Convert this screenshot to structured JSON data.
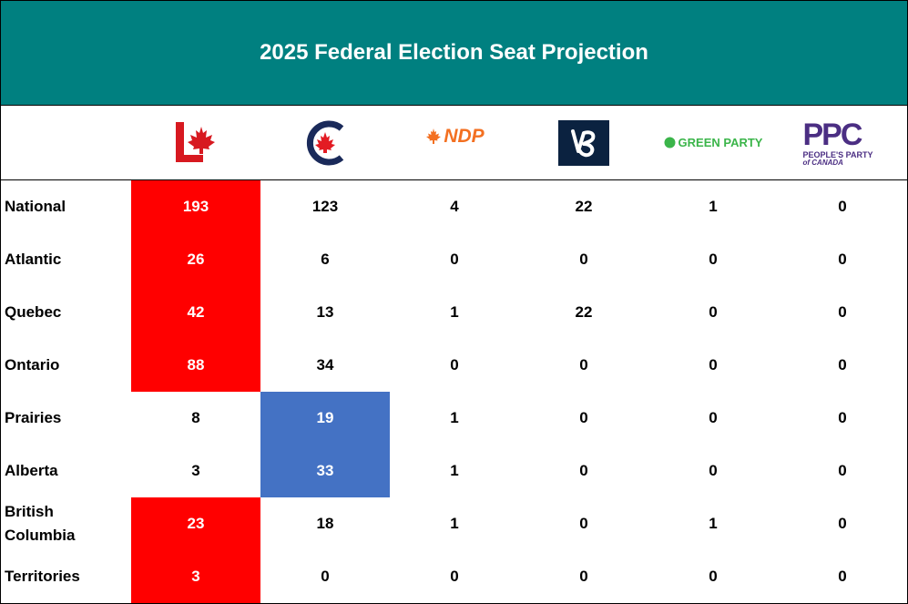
{
  "title": "2025 Federal Election Seat Projection",
  "colors": {
    "header_bg": "#008080",
    "liberal_red": "#ff0000",
    "conservative_blue": "#4472c4",
    "ndp_orange": "#f37021",
    "bloc_navy": "#0b2240",
    "green": "#3bb54a",
    "ppc_purple": "#4b2e83"
  },
  "parties": [
    {
      "id": "lpc",
      "logo_icon": "liberal-logo-icon"
    },
    {
      "id": "cpc",
      "logo_icon": "conservative-logo-icon"
    },
    {
      "id": "ndp",
      "logo_icon": "ndp-logo-icon",
      "logo_text": "NDP"
    },
    {
      "id": "bq",
      "logo_icon": "bloc-logo-icon"
    },
    {
      "id": "gpc",
      "logo_icon": "green-party-logo-icon",
      "logo_text": "GREEN PARTY"
    },
    {
      "id": "ppc",
      "logo_icon": "ppc-logo-icon",
      "logo_text": "PPC",
      "logo_subtext_1": "PEOPLE'S PARTY",
      "logo_subtext_2": "of CANADA"
    }
  ],
  "chart_data": {
    "type": "table",
    "title": "2025 Federal Election Seat Projection",
    "columns": [
      "lpc",
      "cpc",
      "ndp",
      "bq",
      "gpc",
      "ppc"
    ],
    "rows": [
      {
        "region": "National",
        "values": [
          193,
          123,
          4,
          22,
          1,
          0
        ],
        "winner": "lpc"
      },
      {
        "region": "Atlantic",
        "values": [
          26,
          6,
          0,
          0,
          0,
          0
        ],
        "winner": "lpc"
      },
      {
        "region": "Quebec",
        "values": [
          42,
          13,
          1,
          22,
          0,
          0
        ],
        "winner": "lpc"
      },
      {
        "region": "Ontario",
        "values": [
          88,
          34,
          0,
          0,
          0,
          0
        ],
        "winner": "lpc"
      },
      {
        "region": "Prairies",
        "values": [
          8,
          19,
          1,
          0,
          0,
          0
        ],
        "winner": "cpc"
      },
      {
        "region": "Alberta",
        "values": [
          3,
          33,
          1,
          0,
          0,
          0
        ],
        "winner": "cpc"
      },
      {
        "region": "British\nColumbia",
        "values": [
          23,
          18,
          1,
          0,
          1,
          0
        ],
        "winner": "lpc"
      },
      {
        "region": "Territories",
        "values": [
          3,
          0,
          0,
          0,
          0,
          0
        ],
        "winner": "lpc"
      }
    ]
  }
}
